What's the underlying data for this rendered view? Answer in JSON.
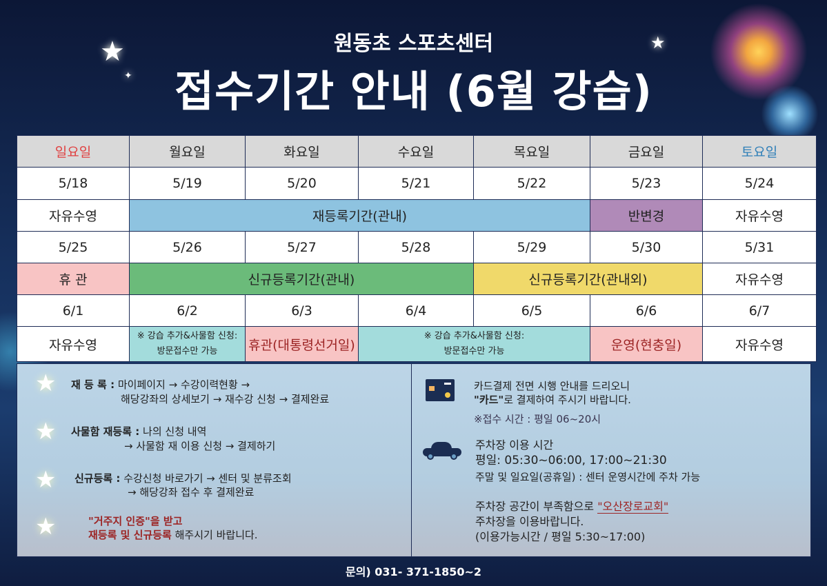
{
  "header": {
    "subtitle": "원동초 스포츠센터",
    "title": "접수기간 안내 (6월 강습)"
  },
  "calendar": {
    "weekdays": [
      "일요일",
      "월요일",
      "화요일",
      "수요일",
      "목요일",
      "금요일",
      "토요일"
    ],
    "weekday_colors": {
      "sunday": "#e04040",
      "saturday": "#2f7fb8"
    },
    "week1_dates": [
      "5/18",
      "5/19",
      "5/20",
      "5/21",
      "5/22",
      "5/23",
      "5/24"
    ],
    "week1_events": {
      "sun": "자유수영",
      "mon_thu": "재등록기간(관내)",
      "fri": "반변경",
      "sat": "자유수영"
    },
    "week2_dates": [
      "5/25",
      "5/26",
      "5/27",
      "5/28",
      "5/29",
      "5/30",
      "5/31"
    ],
    "week2_events": {
      "sun": "휴 관",
      "mon_wed": "신규등록기간(관내)",
      "thu_fri": "신규등록기간(관내외)",
      "sat": "자유수영"
    },
    "week3_dates": [
      "6/1",
      "6/2",
      "6/3",
      "6/4",
      "6/5",
      "6/6",
      "6/7"
    ],
    "week3_events": {
      "sun": "자유수영",
      "mon_l1": "※ 강습 추가&사물함 신청:",
      "mon_l2": "방문접수만 가능",
      "tue": "휴관(대통령선거일)",
      "wed_thu_l1": "※ 강습 추가&사물함 신청:",
      "wed_thu_l2": "방문접수만 가능",
      "fri": "운영(현충일)",
      "sat": "자유수영"
    }
  },
  "info_left": {
    "re_label": "재 등 록 :",
    "re_l1": "마이페이지 → 수강이력현황 →",
    "re_l2": "해당강좌의 상세보기 → 재수강 신청 → 결제완료",
    "locker_label": "사물함 재등록 :",
    "locker_l1": "나의 신청 내역",
    "locker_l2": "→ 사물함 재 이용 신청 → 결제하기",
    "new_label": "신규등록 :",
    "new_l1": "수강신청 바로가기 → 센터 및 분류조회",
    "new_l2": "→ 해당강좌 접수 후 결제완료",
    "notice_red1": "\"거주지 인증\"을 받고",
    "notice_red2": "재등록 및 신규등록",
    "notice_rest": " 해주시기 바랍니다."
  },
  "info_right": {
    "card_l1": "카드결제 전면 시행 안내를 드리오니",
    "card_l2_bold": "\"카드\"",
    "card_l2_rest": "로 결제하여 주시기 바랍니다.",
    "hours": "※접수 시간 : 평일  06~20시",
    "parking_title": "주차장 이용 시간",
    "parking_weekday": "평일:  05:30~06:00, 17:00~21:30",
    "parking_weekend": "주말 및 일요일(공휴일) : 센터 운영시간에 주차 가능",
    "alt_l1": "주차장 공간이 부족함으로 ",
    "alt_church": "\"오산장로교회\"",
    "alt_l2": "주차장을 이용바랍니다.",
    "alt_l3": "(이용가능시간 / 평일 5:30~17:00)"
  },
  "footer": {
    "contact": "문의) 031- 371-1850~2"
  }
}
